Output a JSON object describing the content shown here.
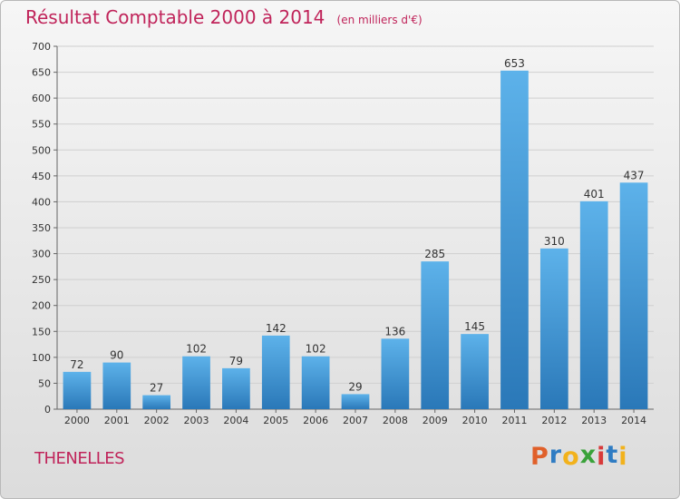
{
  "chart_data": {
    "type": "bar",
    "title": "Résultat Comptable 2000 à 2014",
    "subtitle": "(en milliers d'€)",
    "categories": [
      "2000",
      "2001",
      "2002",
      "2003",
      "2004",
      "2005",
      "2006",
      "2007",
      "2008",
      "2009",
      "2010",
      "2011",
      "2012",
      "2013",
      "2014"
    ],
    "values": [
      72,
      90,
      27,
      102,
      79,
      142,
      102,
      29,
      136,
      285,
      145,
      653,
      310,
      401,
      437
    ],
    "ylim": [
      0,
      700
    ],
    "yticks": [
      0,
      50,
      100,
      150,
      200,
      250,
      300,
      350,
      400,
      450,
      500,
      550,
      600,
      650,
      700
    ],
    "grid": true,
    "bar_color": "#3a8fd4",
    "title_color": "#c0245a"
  },
  "place_name": "THENELLES",
  "logo": {
    "text": "Proxiti",
    "letters": [
      {
        "ch": "P",
        "color": "#e0602a"
      },
      {
        "ch": "r",
        "color": "#2f7cc3"
      },
      {
        "ch": "o",
        "color": "#f2b21c"
      },
      {
        "ch": "x",
        "color": "#3aa23a"
      },
      {
        "ch": "i",
        "color": "#d83a3a"
      },
      {
        "ch": "t",
        "color": "#2f7cc3"
      },
      {
        "ch": "i",
        "color": "#f2b21c"
      }
    ]
  }
}
